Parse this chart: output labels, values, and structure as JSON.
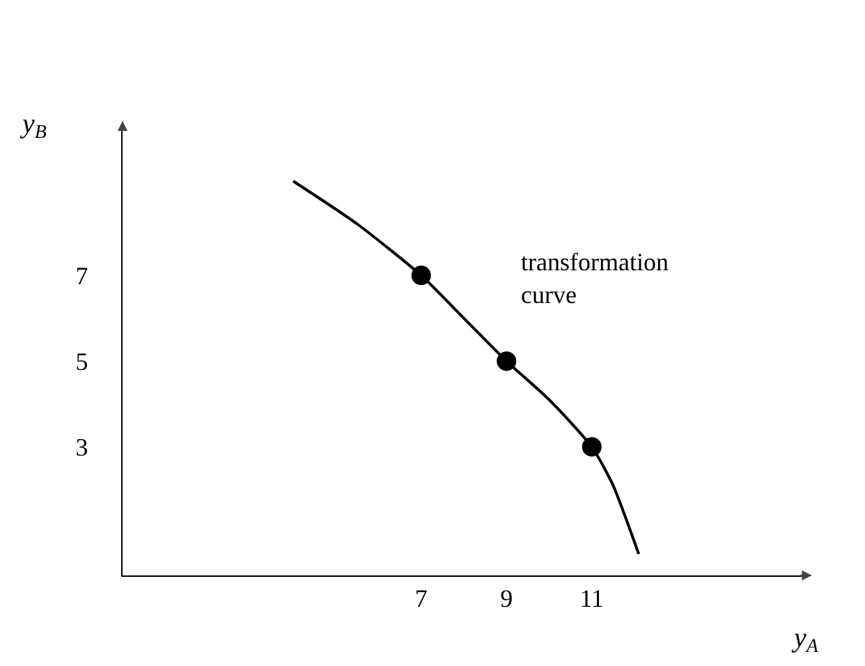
{
  "chart_data": {
    "type": "line",
    "xlabel": "y$_{A}$",
    "ylabel": "y$_{B}$",
    "series": [
      {
        "x": [
          4,
          5.5,
          7,
          8,
          9,
          10,
          11,
          11.5,
          12.1
        ],
        "values": [
          9.2,
          8.2,
          7,
          6,
          5,
          4.1,
          3,
          2.1,
          0.5
        ],
        "color": "#000000",
        "marker": "none"
      },
      {
        "type": "scatter",
        "x": [
          7,
          9,
          11
        ],
        "values": [
          7,
          5,
          3
        ],
        "color": "#000000",
        "marker": "circle"
      }
    ],
    "xlim": [
      0,
      16
    ],
    "ylim": [
      0,
      10.5
    ],
    "xticks": [
      7,
      9,
      11
    ],
    "yticks": [
      3,
      5,
      7
    ],
    "grid": false,
    "legend": false,
    "annotations": [
      "transformation\ncurve"
    ]
  }
}
